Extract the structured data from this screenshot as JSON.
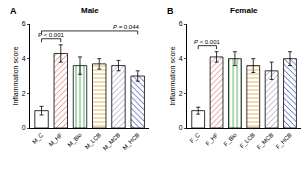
{
  "chart_data": [
    {
      "type": "bar",
      "panel": "A",
      "title": "Male",
      "y_label": "Inflammation score",
      "categories": [
        "M_C",
        "M_HF",
        "M_Bio",
        "M_LCB",
        "M_MCB",
        "M_HCB"
      ],
      "values": [
        1.0,
        4.3,
        3.6,
        3.7,
        3.6,
        3.0
      ],
      "errors": [
        0.25,
        0.5,
        0.5,
        0.3,
        0.3,
        0.3
      ],
      "colors": [
        "#ffffff",
        "#e06a6a",
        "#2f9a3a",
        "#d9a441",
        "#9e9ac8",
        "#2b3f9e"
      ],
      "ylim": [
        0,
        6
      ],
      "yticks": [
        0,
        2,
        4,
        6
      ],
      "comparisons": [
        {
          "from": "M_C",
          "to": "M_HF",
          "label": "P < 0.001"
        },
        {
          "from": "M_C",
          "to": "M_HCB",
          "label": "P = 0.044"
        }
      ]
    },
    {
      "type": "bar",
      "panel": "B",
      "title": "Female",
      "y_label": "Inflammation score",
      "categories": [
        "F_C",
        "F_HF",
        "F_Bio",
        "F_LCB",
        "F_MCB",
        "F_HCB"
      ],
      "values": [
        1.0,
        4.1,
        4.0,
        3.6,
        3.3,
        4.0
      ],
      "errors": [
        0.2,
        0.3,
        0.4,
        0.4,
        0.5,
        0.4
      ],
      "colors": [
        "#ffffff",
        "#e06a6a",
        "#2f9a3a",
        "#d9a441",
        "#9e9ac8",
        "#2b3f9e"
      ],
      "ylim": [
        0,
        6
      ],
      "yticks": [
        0,
        2,
        4,
        6
      ],
      "comparisons": [
        {
          "from": "F_C",
          "to": "F_HF",
          "label": "P < 0.001"
        }
      ]
    }
  ]
}
